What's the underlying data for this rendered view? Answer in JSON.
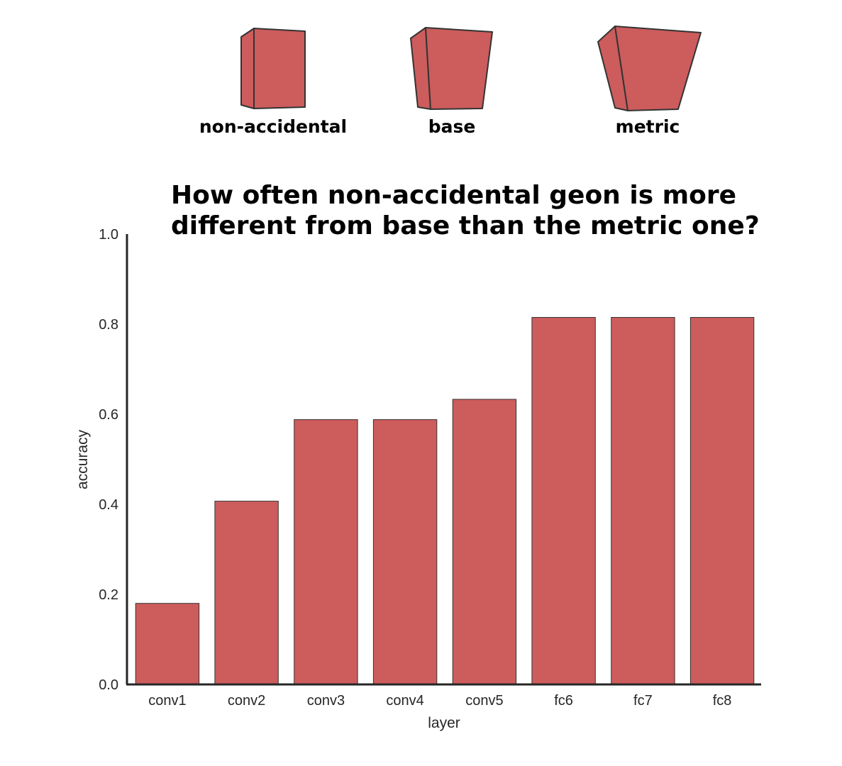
{
  "shapes": {
    "fill_color": "#cd5c5c",
    "stroke_color": "#333333",
    "labels": [
      "non-accidental",
      "base",
      "metric"
    ]
  },
  "chart_data": {
    "type": "bar",
    "title": "How often non-accidental geon is more different from base than the metric one?",
    "title_lines": [
      "How often non-accidental geon is more",
      "different from base than the metric one?"
    ],
    "xlabel": "layer",
    "ylabel": "accuracy",
    "categories": [
      "conv1",
      "conv2",
      "conv3",
      "conv4",
      "conv5",
      "fc6",
      "fc7",
      "fc8"
    ],
    "values": [
      0.18,
      0.407,
      0.588,
      0.588,
      0.633,
      0.815,
      0.815,
      0.815
    ],
    "ylim": [
      0.0,
      1.0
    ],
    "yticks": [
      0.0,
      0.2,
      0.4,
      0.6,
      0.8,
      1.0
    ],
    "ytick_labels": [
      "0.0",
      "0.2",
      "0.4",
      "0.6",
      "0.8",
      "1.0"
    ],
    "grid": false,
    "legend": "none",
    "bar_color": "#cd5c5c",
    "bar_edge_color": "#333333"
  }
}
